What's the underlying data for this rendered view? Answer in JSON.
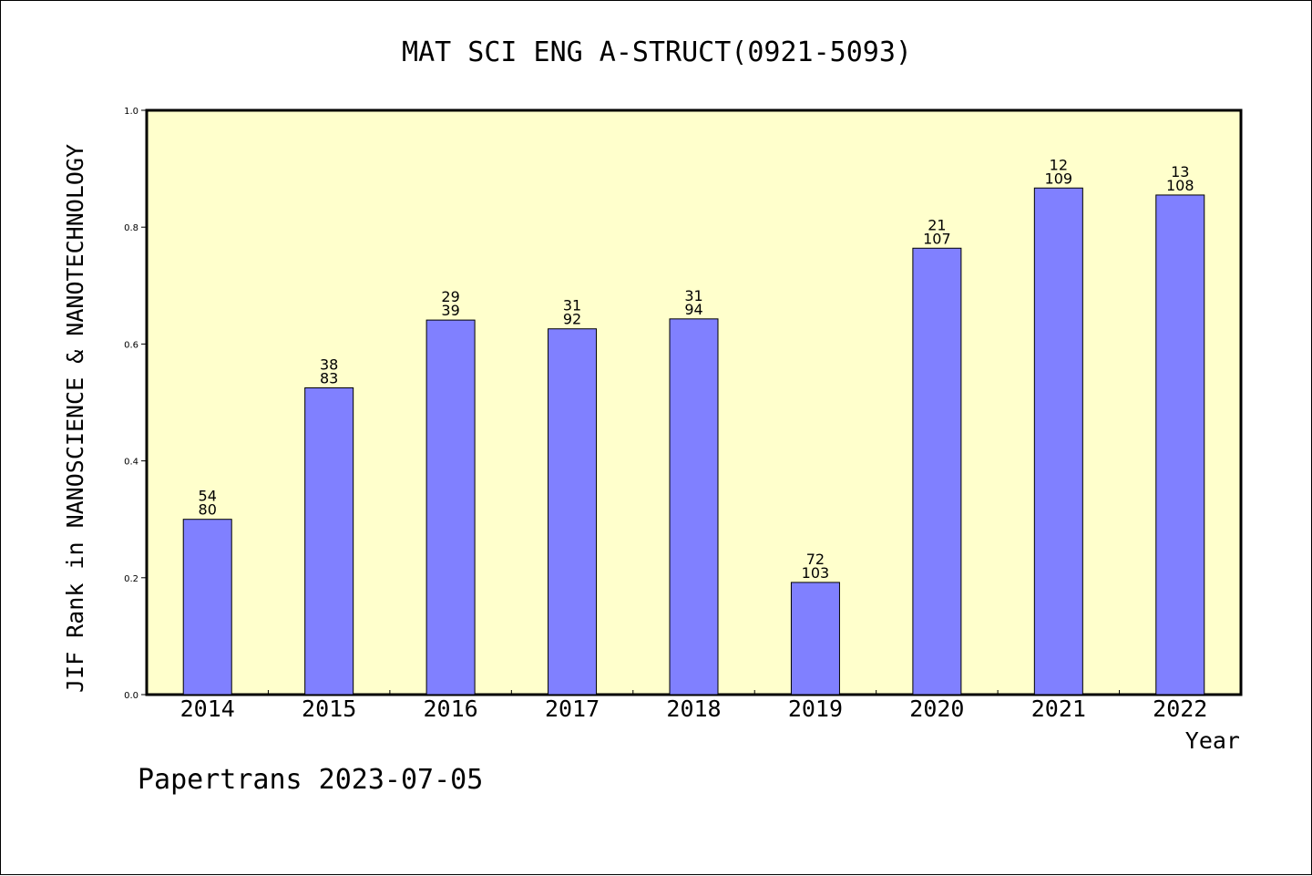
{
  "chart_data": {
    "type": "bar",
    "title": "MAT SCI ENG A-STRUCT(0921-5093)",
    "xlabel": "Year",
    "ylabel": "JIF Rank in NANOSCIENCE & NANOTECHNOLOGY",
    "ylim": [
      0,
      1.0
    ],
    "yticks": [
      "0.0",
      "0.2",
      "0.4",
      "0.6",
      "0.8",
      "1.0"
    ],
    "ytick_values": [
      0.0,
      0.2,
      0.4,
      0.6,
      0.8,
      1.0
    ],
    "categories": [
      "2014",
      "2015",
      "2016",
      "2017",
      "2018",
      "2019",
      "2020",
      "2021",
      "2022"
    ],
    "values": [
      0.3,
      0.525,
      0.641,
      0.626,
      0.643,
      0.192,
      0.764,
      0.867,
      0.855
    ],
    "rank": [
      "54",
      "38",
      "29",
      "31",
      "31",
      "72",
      "21",
      "12",
      "13"
    ],
    "total": [
      "80",
      "83",
      "39",
      "92",
      "94",
      "103",
      "107",
      "109",
      "108"
    ],
    "grid": false,
    "colors": {
      "plot_bg": "#ffffcc",
      "bar_fill": "#8080ff",
      "bar_stroke": "#000000"
    }
  },
  "footer": "Papertrans 2023-07-05"
}
